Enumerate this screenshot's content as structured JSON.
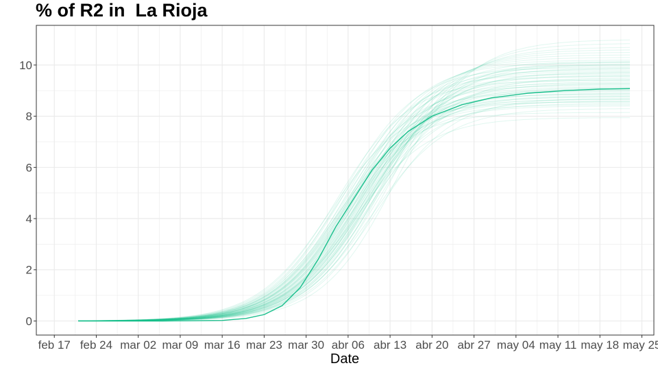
{
  "chart_data": {
    "type": "line",
    "title": "% of R2 in  La Rioja",
    "xlabel": "Date",
    "ylabel": "",
    "x_tick_labels": [
      "feb 17",
      "feb 24",
      "mar 02",
      "mar 09",
      "mar 16",
      "mar 23",
      "mar 30",
      "abr 06",
      "abr 13",
      "abr 20",
      "abr 27",
      "may 04",
      "may 11",
      "may 18",
      "may 25"
    ],
    "x_tick_dates": [
      "2020-02-17",
      "2020-02-24",
      "2020-03-02",
      "2020-03-09",
      "2020-03-16",
      "2020-03-23",
      "2020-03-30",
      "2020-04-06",
      "2020-04-13",
      "2020-04-20",
      "2020-04-27",
      "2020-05-04",
      "2020-05-11",
      "2020-05-18",
      "2020-05-25"
    ],
    "xlim": [
      "2020-02-14",
      "2020-05-27"
    ],
    "y_tick_labels": [
      "0",
      "2",
      "4",
      "6",
      "8",
      "10"
    ],
    "y_ticks": [
      0,
      2,
      4,
      6,
      8,
      10
    ],
    "ylim": [
      -0.55,
      11.55
    ],
    "grid": true,
    "legend": "none",
    "colors": {
      "line": "#1abf8c",
      "grid": "#ebebeb",
      "border": "#333333",
      "background": "#ffffff"
    },
    "x": [
      "2020-02-21",
      "2020-03-06",
      "2020-03-16",
      "2020-03-20",
      "2020-03-23",
      "2020-03-26",
      "2020-03-29",
      "2020-04-01",
      "2020-04-04",
      "2020-04-07",
      "2020-04-10",
      "2020-04-13",
      "2020-04-16",
      "2020-04-20",
      "2020-04-25",
      "2020-04-30",
      "2020-05-06",
      "2020-05-12",
      "2020-05-18",
      "2020-05-23"
    ],
    "series": [
      {
        "values": [
          0,
          0,
          0.02,
          0.1,
          0.25,
          0.6,
          1.3,
          2.4,
          3.7,
          4.8,
          5.9,
          6.75,
          7.4,
          8.0,
          8.45,
          8.72,
          8.9,
          9.0,
          9.06,
          9.08
        ]
      }
    ],
    "simulations": {
      "count": 60,
      "final_values": [
        7.95,
        8.15,
        8.3,
        8.4,
        8.5,
        8.55,
        8.6,
        8.65,
        8.7,
        8.75,
        8.8,
        8.85,
        8.9,
        8.95,
        9.0,
        9.05,
        9.1,
        9.15,
        9.2,
        9.25,
        9.3,
        9.35,
        9.4,
        9.45,
        9.5,
        9.55,
        9.6,
        9.65,
        9.7,
        9.75,
        9.8,
        9.85,
        9.9,
        9.95,
        10.0,
        10.05,
        10.1,
        10.15,
        10.2,
        10.3,
        10.4,
        10.5,
        10.6,
        10.7,
        10.85,
        11.0,
        8.45,
        8.58,
        8.68,
        8.78,
        8.88,
        9.02,
        9.12,
        9.28,
        9.42,
        9.58,
        9.72,
        9.88,
        10.02,
        10.12
      ],
      "midpoint_dates": [
        "2020-04-07",
        "2020-04-04",
        "2020-04-10",
        "2020-04-06",
        "2020-04-08",
        "2020-04-03",
        "2020-04-09",
        "2020-04-05",
        "2020-04-11",
        "2020-04-06",
        "2020-04-07",
        "2020-04-05",
        "2020-04-08",
        "2020-04-04",
        "2020-04-09",
        "2020-04-06",
        "2020-04-10",
        "2020-04-07",
        "2020-04-05",
        "2020-04-08",
        "2020-04-06",
        "2020-04-09",
        "2020-04-04",
        "2020-04-07",
        "2020-04-11",
        "2020-04-06",
        "2020-04-08",
        "2020-04-05",
        "2020-04-10",
        "2020-04-07",
        "2020-04-06",
        "2020-04-09",
        "2020-04-05",
        "2020-04-08",
        "2020-04-07",
        "2020-04-10",
        "2020-04-06",
        "2020-04-09",
        "2020-04-07",
        "2020-04-08",
        "2020-04-09",
        "2020-04-10",
        "2020-04-11",
        "2020-04-12",
        "2020-04-13",
        "2020-04-14",
        "2020-04-05",
        "2020-04-06",
        "2020-04-07",
        "2020-04-08",
        "2020-04-06",
        "2020-04-07",
        "2020-04-08",
        "2020-04-09",
        "2020-04-08",
        "2020-04-09",
        "2020-04-10",
        "2020-04-10",
        "2020-04-11",
        "2020-04-11"
      ]
    }
  }
}
